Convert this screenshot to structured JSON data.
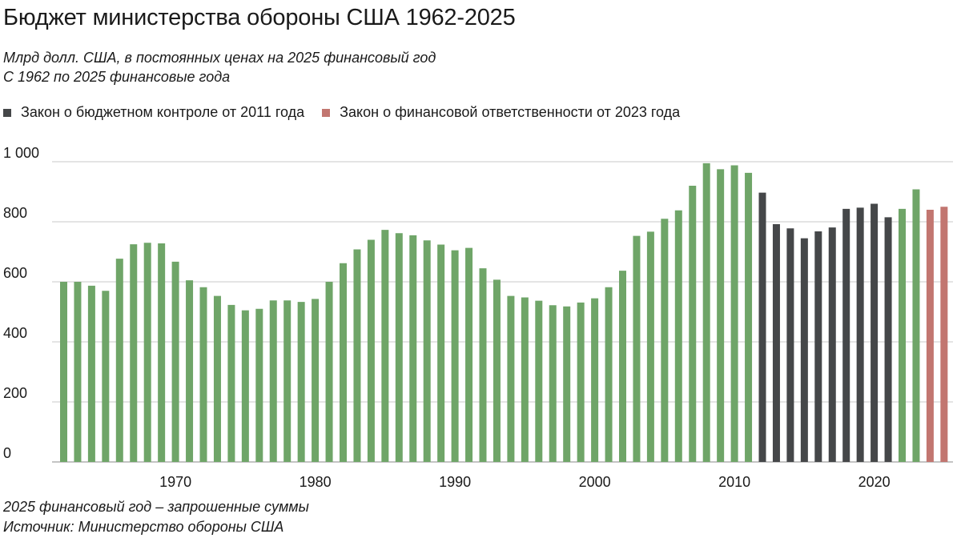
{
  "chart_data": {
    "type": "bar",
    "title": "Бюджет министерства обороны США 1962-2025",
    "subtitle_lines": [
      "Млрд долл. США, в постоянных ценах на 2025 финансовый год",
      "С 1962 по 2025 финансовые года"
    ],
    "legend": [
      {
        "label": "Закон о бюджетном контроле от 2011 года",
        "color": "#454749"
      },
      {
        "label": "Закон о финансовой ответственности от 2023 года",
        "color": "#c27670"
      }
    ],
    "default_color": "#6fa568",
    "x": [
      1962,
      1963,
      1964,
      1965,
      1966,
      1967,
      1968,
      1969,
      1970,
      1971,
      1972,
      1973,
      1974,
      1975,
      1976,
      1977,
      1978,
      1979,
      1980,
      1981,
      1982,
      1983,
      1984,
      1985,
      1986,
      1987,
      1988,
      1989,
      1990,
      1991,
      1992,
      1993,
      1994,
      1995,
      1996,
      1997,
      1998,
      1999,
      2000,
      2001,
      2002,
      2003,
      2004,
      2005,
      2006,
      2007,
      2008,
      2009,
      2010,
      2011,
      2012,
      2013,
      2014,
      2015,
      2016,
      2017,
      2018,
      2019,
      2020,
      2021,
      2022,
      2023,
      2024,
      2025
    ],
    "values": [
      600,
      600,
      587,
      570,
      677,
      725,
      730,
      728,
      667,
      605,
      582,
      553,
      523,
      505,
      510,
      538,
      538,
      533,
      543,
      600,
      662,
      708,
      740,
      773,
      762,
      755,
      738,
      724,
      705,
      713,
      645,
      607,
      553,
      548,
      537,
      522,
      518,
      531,
      545,
      582,
      637,
      753,
      767,
      810,
      838,
      920,
      995,
      975,
      988,
      963,
      897,
      792,
      778,
      745,
      768,
      781,
      843,
      847,
      860,
      815,
      843,
      908,
      840,
      850
    ],
    "bar_categories": [
      "default",
      "default",
      "default",
      "default",
      "default",
      "default",
      "default",
      "default",
      "default",
      "default",
      "default",
      "default",
      "default",
      "default",
      "default",
      "default",
      "default",
      "default",
      "default",
      "default",
      "default",
      "default",
      "default",
      "default",
      "default",
      "default",
      "default",
      "default",
      "default",
      "default",
      "default",
      "default",
      "default",
      "default",
      "default",
      "default",
      "default",
      "default",
      "default",
      "default",
      "default",
      "default",
      "default",
      "default",
      "default",
      "default",
      "default",
      "default",
      "default",
      "default",
      "bca",
      "bca",
      "bca",
      "bca",
      "bca",
      "bca",
      "bca",
      "bca",
      "bca",
      "bca",
      "default",
      "default",
      "fra",
      "fra"
    ],
    "category_colors": {
      "default": "#6fa568",
      "bca": "#454749",
      "fra": "#c27670"
    },
    "ylim": [
      0,
      1000
    ],
    "yticks": [
      0,
      200,
      400,
      600,
      800,
      1000
    ],
    "ytick_labels": [
      "0",
      "200",
      "400",
      "600",
      "800",
      "1 000"
    ],
    "xticks": [
      1970,
      1980,
      1990,
      2000,
      2010,
      2020
    ],
    "xtick_labels": [
      "1970",
      "1980",
      "1990",
      "2000",
      "2010",
      "2020"
    ],
    "grid": true,
    "legend_position": "top-left"
  },
  "footnotes": [
    "2025 финансовый год – запрошенные суммы",
    "Источник: Министерство обороны США"
  ]
}
